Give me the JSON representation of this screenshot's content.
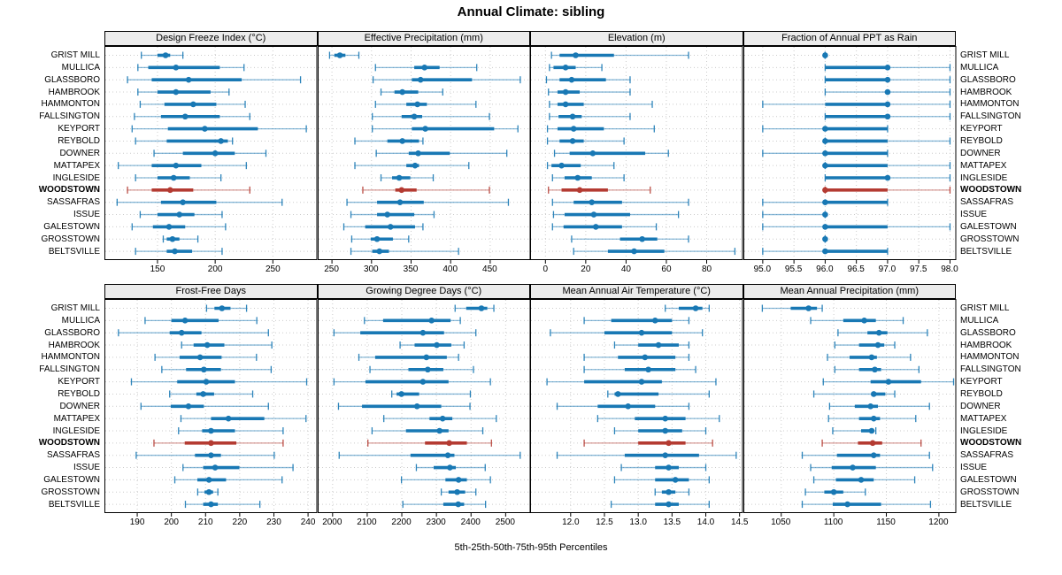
{
  "title": "Annual Climate: sibling",
  "footer": "5th-25th-50th-75th-95th Percentiles",
  "percentile_labels": [
    "5th",
    "25th",
    "50th",
    "75th",
    "95th"
  ],
  "stations": [
    "GRIST MILL",
    "MULLICA",
    "GLASSBORO",
    "HAMBROOK",
    "HAMMONTON",
    "FALLSINGTON",
    "KEYPORT",
    "REYBOLD",
    "DOWNER",
    "MATTAPEX",
    "INGLESIDE",
    "WOODSTOWN",
    "SASSAFRAS",
    "ISSUE",
    "GALESTOWN",
    "GROSSTOWN",
    "BELTSVILLE"
  ],
  "highlight_station": "WOODSTOWN",
  "highlight_index": 11,
  "colors": {
    "series": "#1878b4",
    "highlight": "#b43b32",
    "grid": "#cccccc",
    "strip_bg": "#ececec",
    "border": "#000000"
  },
  "chart_data": {
    "type": "dotplot-percentile-trellis",
    "title": "Annual Climate: sibling",
    "caption": "5th-25th-50th-75th-95th Percentiles",
    "rows_are": "stations, listed in page-data.stations (top to bottom)",
    "values_format": "[p5, p25, p50, p75, p95] per station",
    "panels": [
      {
        "title": "Design Freeze Index (°C)",
        "xlim": [
          104,
          288.5
        ],
        "ticks": [
          150,
          200,
          250
        ],
        "tick_decimals": 0,
        "values": [
          [
            136,
            150,
            157,
            161,
            172
          ],
          [
            133,
            142,
            166,
            204,
            225
          ],
          [
            124,
            145,
            177,
            223,
            274
          ],
          [
            133,
            150,
            166,
            196,
            212
          ],
          [
            135,
            156,
            181,
            201,
            226
          ],
          [
            130,
            153,
            174,
            204,
            230
          ],
          [
            128,
            159,
            191,
            237,
            279
          ],
          [
            131,
            158,
            205,
            211,
            215
          ],
          [
            147,
            172,
            200,
            217,
            244
          ],
          [
            116,
            145,
            166,
            188,
            227
          ],
          [
            131,
            150,
            164,
            178,
            205
          ],
          [
            124,
            145,
            161,
            181,
            230
          ],
          [
            115,
            153,
            172,
            201,
            258
          ],
          [
            135,
            150,
            169,
            182,
            206
          ],
          [
            128,
            146,
            160,
            174,
            209
          ],
          [
            155,
            158,
            163,
            169,
            185
          ],
          [
            131,
            158,
            165,
            180,
            206
          ]
        ]
      },
      {
        "title": "Effective Precipitation (mm)",
        "xlim": [
          232,
          501
        ],
        "ticks": [
          250,
          300,
          350,
          400,
          450
        ],
        "tick_decimals": 0,
        "values": [
          [
            247,
            253,
            260,
            267,
            284
          ],
          [
            305,
            354,
            367,
            386,
            433
          ],
          [
            302,
            351,
            362,
            427,
            488
          ],
          [
            312,
            329,
            339,
            359,
            390
          ],
          [
            305,
            344,
            358,
            370,
            432
          ],
          [
            301,
            338,
            354,
            364,
            449
          ],
          [
            301,
            351,
            368,
            455,
            485
          ],
          [
            279,
            320,
            339,
            360,
            365
          ],
          [
            306,
            347,
            359,
            399,
            471
          ],
          [
            279,
            344,
            355,
            360,
            423
          ],
          [
            312,
            326,
            335,
            349,
            378
          ],
          [
            289,
            330,
            338,
            357,
            449
          ],
          [
            269,
            307,
            336,
            366,
            473
          ],
          [
            274,
            307,
            320,
            354,
            379
          ],
          [
            265,
            292,
            324,
            355,
            365
          ],
          [
            275,
            299,
            307,
            327,
            347
          ],
          [
            274,
            301,
            310,
            322,
            410
          ]
        ]
      },
      {
        "title": "Elevation (m)",
        "xlim": [
          -7.6,
          98
        ],
        "ticks": [
          0,
          20,
          40,
          60,
          80
        ],
        "tick_decimals": 0,
        "values": [
          [
            3,
            7,
            15,
            34,
            71
          ],
          [
            2,
            4,
            10,
            15,
            28
          ],
          [
            0.5,
            7,
            13,
            30,
            42
          ],
          [
            1.5,
            6,
            10,
            17,
            42
          ],
          [
            2,
            6,
            10,
            19,
            53
          ],
          [
            2,
            6.5,
            13.5,
            18,
            42
          ],
          [
            1,
            6,
            14,
            29,
            54
          ],
          [
            1,
            7,
            13.5,
            19,
            39
          ],
          [
            4.5,
            12,
            23.5,
            49.5,
            61
          ],
          [
            1,
            3,
            8,
            17.5,
            34
          ],
          [
            3.5,
            9.5,
            16,
            23,
            39
          ],
          [
            1.5,
            8,
            17,
            31,
            52
          ],
          [
            3.5,
            14,
            23,
            38,
            71
          ],
          [
            4,
            9.5,
            24,
            42,
            66
          ],
          [
            3.5,
            9,
            25,
            38,
            55
          ],
          [
            13,
            37,
            48,
            55.5,
            71
          ],
          [
            14,
            31,
            44,
            59,
            94
          ]
        ]
      },
      {
        "title": "Fraction of Annual PPT as Rain",
        "xlim": [
          94.69,
          98.1
        ],
        "ticks": [
          95.0,
          95.5,
          96.0,
          96.5,
          97.0,
          97.5,
          98.0
        ],
        "tick_decimals": 1,
        "values": [
          [
            96,
            96,
            96,
            96,
            96
          ],
          [
            96,
            96,
            97,
            97,
            98
          ],
          [
            96,
            96,
            97,
            97,
            98
          ],
          [
            96,
            97,
            97,
            97,
            98
          ],
          [
            95,
            96,
            97,
            97,
            98
          ],
          [
            96,
            96,
            97,
            97,
            98
          ],
          [
            95,
            96,
            96,
            97,
            97
          ],
          [
            96,
            96,
            96,
            97,
            98
          ],
          [
            95,
            96,
            96,
            97,
            97
          ],
          [
            96,
            96,
            96,
            97,
            98
          ],
          [
            96,
            96,
            97,
            97,
            98
          ],
          [
            96,
            96,
            96,
            97,
            98
          ],
          [
            95,
            96,
            96,
            97,
            97
          ],
          [
            95,
            96,
            96,
            96,
            96
          ],
          [
            95,
            96,
            96,
            97,
            98
          ],
          [
            96,
            96,
            96,
            96,
            96
          ],
          [
            95,
            96,
            96,
            97,
            97
          ]
        ]
      },
      {
        "title": "Frost-Free Days",
        "xlim": [
          180.4,
          242.7
        ],
        "ticks": [
          190,
          200,
          210,
          220,
          230,
          240
        ],
        "tick_decimals": 0,
        "values": [
          [
            210.3,
            212.6,
            214.8,
            217.3,
            222
          ],
          [
            192.3,
            200,
            204,
            213.8,
            225
          ],
          [
            184.5,
            199.5,
            203,
            208.8,
            228.4
          ],
          [
            203,
            206.5,
            210.5,
            215.5,
            229.4
          ],
          [
            195.2,
            202.4,
            208.4,
            214.7,
            224.9
          ],
          [
            197.2,
            204.3,
            209.5,
            214.5,
            229.2
          ],
          [
            188.3,
            201.7,
            210.2,
            218.6,
            239.6
          ],
          [
            199.5,
            207.3,
            209.3,
            212.5,
            223.8
          ],
          [
            191.1,
            199.8,
            205,
            209.5,
            228.4
          ],
          [
            202.8,
            211.6,
            216.7,
            227.2,
            239.4
          ],
          [
            202.1,
            209,
            211.6,
            218.6,
            232.7
          ],
          [
            194.9,
            203.9,
            211.6,
            219,
            232.7
          ],
          [
            189.7,
            206.9,
            211.6,
            214.5,
            230.1
          ],
          [
            203.4,
            209.3,
            212.8,
            219.9,
            235.6
          ],
          [
            201,
            207.6,
            211,
            216,
            232.4
          ],
          [
            207.7,
            209.7,
            211,
            212.2,
            213.6
          ],
          [
            204.1,
            209.3,
            211.6,
            213.6,
            225.9
          ]
        ]
      },
      {
        "title": "Growing Degree Days (°C)",
        "xlim": [
          1957,
          2572
        ],
        "ticks": [
          2000,
          2100,
          2200,
          2300,
          2400,
          2500
        ],
        "tick_decimals": 0,
        "values": [
          [
            2354,
            2386,
            2430,
            2447,
            2466
          ],
          [
            2092,
            2146,
            2286,
            2341,
            2369
          ],
          [
            2004,
            2080,
            2261,
            2322,
            2414
          ],
          [
            2195,
            2237,
            2301,
            2343,
            2380
          ],
          [
            2076,
            2123,
            2271,
            2330,
            2364
          ],
          [
            2108,
            2219,
            2275,
            2320,
            2407
          ],
          [
            2004,
            2095,
            2261,
            2335,
            2456
          ],
          [
            2171,
            2185,
            2199,
            2250,
            2398
          ],
          [
            2017,
            2085,
            2244,
            2314,
            2397
          ],
          [
            2148,
            2280,
            2318,
            2346,
            2473
          ],
          [
            2114,
            2212,
            2309,
            2335,
            2434
          ],
          [
            2102,
            2267,
            2337,
            2388,
            2459
          ],
          [
            2019,
            2225,
            2333,
            2352,
            2542
          ],
          [
            2242,
            2292,
            2339,
            2356,
            2441
          ],
          [
            2199,
            2326,
            2364,
            2388,
            2456
          ],
          [
            2314,
            2335,
            2360,
            2383,
            2414
          ],
          [
            2203,
            2320,
            2363,
            2380,
            2442
          ]
        ]
      },
      {
        "title": "Mean Annual Air Temperature (°C)",
        "xlim": [
          11.4,
          14.55
        ],
        "ticks": [
          12.0,
          12.5,
          13.0,
          13.5,
          14.0,
          14.5
        ],
        "tick_decimals": 1,
        "values": [
          [
            13.4,
            13.6,
            13.85,
            13.95,
            14.05
          ],
          [
            12.2,
            12.6,
            13.25,
            13.5,
            13.75
          ],
          [
            11.7,
            12.5,
            13.05,
            13.5,
            13.95
          ],
          [
            12.65,
            13.0,
            13.3,
            13.6,
            13.75
          ],
          [
            12.2,
            12.7,
            13.1,
            13.55,
            13.75
          ],
          [
            12.2,
            12.8,
            13.15,
            13.55,
            13.85
          ],
          [
            11.65,
            12.2,
            13.05,
            13.35,
            14.15
          ],
          [
            12.55,
            12.65,
            12.7,
            13.3,
            14.05
          ],
          [
            11.8,
            12.4,
            12.85,
            13.25,
            13.75
          ],
          [
            12.4,
            12.95,
            13.4,
            13.7,
            14.2
          ],
          [
            12.65,
            13.0,
            13.4,
            13.65,
            14.0
          ],
          [
            12.2,
            13.0,
            13.45,
            13.7,
            14.1
          ],
          [
            11.8,
            12.8,
            13.4,
            13.9,
            14.45
          ],
          [
            12.75,
            13.25,
            13.45,
            13.6,
            14.0
          ],
          [
            12.65,
            13.25,
            13.55,
            13.75,
            14.05
          ],
          [
            13.25,
            13.35,
            13.45,
            13.55,
            13.75
          ],
          [
            12.6,
            13.25,
            13.45,
            13.6,
            14.05
          ]
        ]
      },
      {
        "title": "Mean Annual Precipitation (mm)",
        "xlim": [
          1014,
          1216.5
        ],
        "ticks": [
          1050,
          1100,
          1150,
          1200
        ],
        "tick_decimals": 0,
        "values": [
          [
            1032,
            1059,
            1076,
            1084,
            1089
          ],
          [
            1078,
            1109,
            1129,
            1140,
            1166
          ],
          [
            1104,
            1132,
            1143,
            1151,
            1189
          ],
          [
            1101,
            1124,
            1142,
            1148,
            1158
          ],
          [
            1094,
            1115,
            1136,
            1141,
            1173
          ],
          [
            1101,
            1124,
            1139,
            1145,
            1181
          ],
          [
            1090,
            1135,
            1152,
            1183,
            1214
          ],
          [
            1081,
            1136,
            1138,
            1149,
            1158
          ],
          [
            1096,
            1120,
            1135,
            1142,
            1191
          ],
          [
            1095,
            1124,
            1138,
            1144,
            1178
          ],
          [
            1099,
            1126,
            1136,
            1138,
            1140
          ],
          [
            1089,
            1123,
            1137,
            1146,
            1183
          ],
          [
            1070,
            1103,
            1138,
            1144,
            1191
          ],
          [
            1078,
            1098,
            1118,
            1140,
            1194
          ],
          [
            1081,
            1102,
            1126,
            1138,
            1177
          ],
          [
            1073,
            1091,
            1100,
            1109,
            1130
          ],
          [
            1070,
            1099,
            1113,
            1145,
            1192
          ]
        ]
      }
    ]
  }
}
